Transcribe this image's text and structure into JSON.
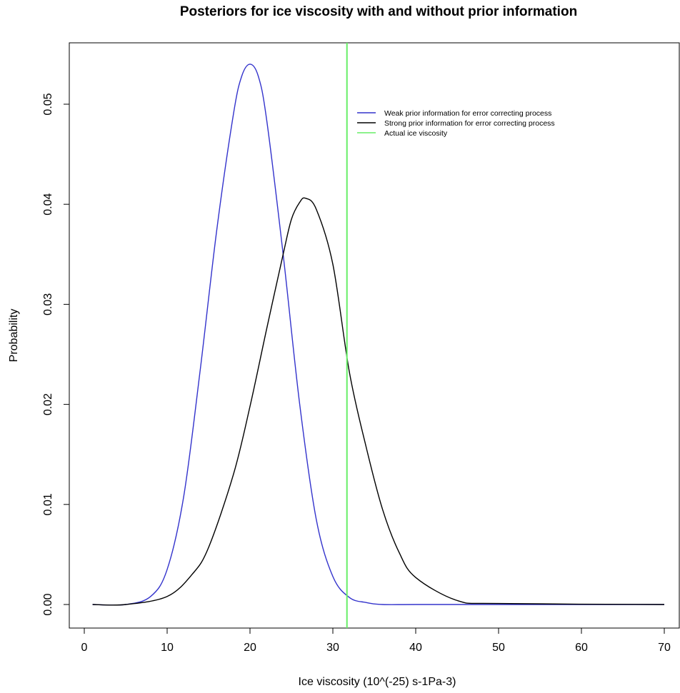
{
  "chart_data": {
    "type": "line",
    "title": "Posteriors for ice viscosity with and without prior information",
    "xlabel": "Ice viscosity (10^(-25) s-1Pa-3)",
    "ylabel": "Probability",
    "xlim": [
      0,
      70
    ],
    "ylim": [
      0,
      0.055
    ],
    "x_ticks": [
      0,
      10,
      20,
      30,
      40,
      50,
      60,
      70
    ],
    "x_tick_labels": [
      "0",
      "10",
      "20",
      "30",
      "40",
      "50",
      "60",
      "70"
    ],
    "y_ticks": [
      0,
      0.01,
      0.02,
      0.03,
      0.04,
      0.05
    ],
    "y_tick_labels": [
      "0.00",
      "0.01",
      "0.02",
      "0.03",
      "0.04",
      "0.05"
    ],
    "grid": false,
    "legend_position": "top-right",
    "series": [
      {
        "name": "Weak prior information for error correcting process",
        "color": "#3333cc",
        "x": [
          1,
          5,
          8,
          10,
          12,
          14,
          16,
          18,
          19,
          20,
          21,
          22,
          24,
          26,
          28,
          30,
          32,
          34,
          36,
          40,
          50,
          70
        ],
        "values": [
          0,
          0,
          0.0008,
          0.0035,
          0.0108,
          0.0235,
          0.0375,
          0.049,
          0.0528,
          0.054,
          0.0528,
          0.0485,
          0.035,
          0.02,
          0.0085,
          0.0028,
          0.0007,
          0.0002,
          0,
          0,
          0,
          0
        ]
      },
      {
        "name": "Strong prior information for error correcting process",
        "color": "#000000",
        "x": [
          1,
          5,
          10,
          13,
          15,
          18,
          20,
          22,
          24,
          25,
          26,
          26.7,
          28,
          30,
          32,
          34,
          36,
          38,
          40,
          45,
          50,
          70
        ],
        "values": [
          0,
          0,
          0.0008,
          0.003,
          0.0057,
          0.013,
          0.0198,
          0.0275,
          0.035,
          0.0385,
          0.0402,
          0.0406,
          0.0395,
          0.034,
          0.0232,
          0.0158,
          0.0095,
          0.0052,
          0.0027,
          0.0004,
          0.0001,
          0
        ]
      }
    ],
    "vlines": [
      {
        "name": "Actual ice viscosity",
        "x": 31.7,
        "color": "#66ee66"
      }
    ]
  }
}
